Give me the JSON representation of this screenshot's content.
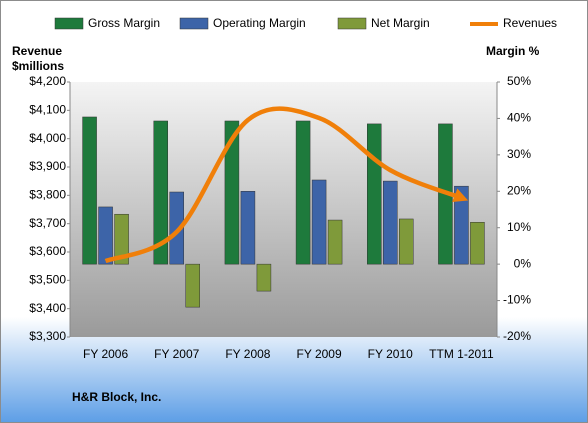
{
  "chart_data": {
    "type": "bar-line",
    "title": "H&R Block, Inc.",
    "ylabel": "Revenue $millions",
    "y2label": "Margin %",
    "categories": [
      "FY 2006",
      "FY 2007",
      "FY 2008",
      "FY 2009",
      "FY 2010",
      "TTM 1-2011"
    ],
    "series": [
      {
        "name": "Gross Margin",
        "color": "#1e7a3c",
        "type": "bar",
        "axis": "y2",
        "values": [
          40.4,
          39.3,
          39.3,
          39.3,
          38.5,
          38.5
        ]
      },
      {
        "name": "Operating Margin",
        "color": "#3d64a8",
        "type": "bar",
        "axis": "y2",
        "values": [
          15.7,
          19.8,
          20.0,
          23.1,
          22.8,
          21.4
        ]
      },
      {
        "name": "Net Margin",
        "color": "#7f9a3a",
        "type": "bar",
        "axis": "y2",
        "values": [
          13.7,
          -11.8,
          -7.4,
          12.1,
          12.4,
          11.5
        ]
      },
      {
        "name": "Revenues",
        "color": "#f07f09",
        "type": "line",
        "axis": "y",
        "values": [
          3568,
          3671,
          4066,
          4073,
          3889,
          3791
        ]
      }
    ],
    "ylim": [
      3300,
      4200
    ],
    "yticks": [
      {
        "value": 3300,
        "label": "$3,300"
      },
      {
        "value": 3400,
        "label": "$3,400"
      },
      {
        "value": 3500,
        "label": "$3,500"
      },
      {
        "value": 3600,
        "label": "$3,600"
      },
      {
        "value": 3700,
        "label": "$3,700"
      },
      {
        "value": 3800,
        "label": "$3,800"
      },
      {
        "value": 3900,
        "label": "$3,900"
      },
      {
        "value": 4000,
        "label": "$4,000"
      },
      {
        "value": 4100,
        "label": "$4,100"
      },
      {
        "value": 4200,
        "label": "$4,200"
      }
    ],
    "y2lim": [
      -20,
      50
    ],
    "y2ticks": [
      {
        "value": -20,
        "label": "-20%"
      },
      {
        "value": -10,
        "label": "-10%"
      },
      {
        "value": 0,
        "label": "0%"
      },
      {
        "value": 10,
        "label": "10%"
      },
      {
        "value": 20,
        "label": "20%"
      },
      {
        "value": 30,
        "label": "30%"
      },
      {
        "value": 40,
        "label": "40%"
      },
      {
        "value": 50,
        "label": "50%"
      }
    ],
    "grid": false,
    "legend": "top"
  }
}
